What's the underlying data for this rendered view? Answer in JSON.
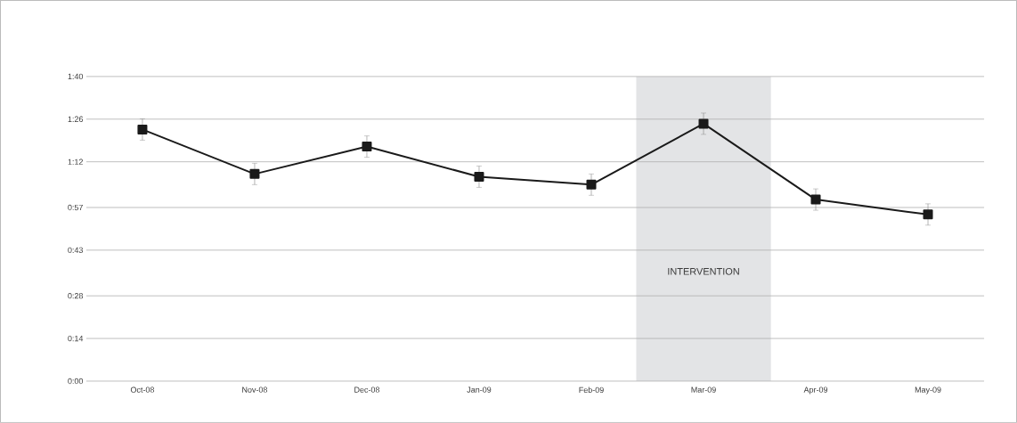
{
  "chart_data": {
    "type": "line",
    "categories": [
      "Oct-08",
      "Nov-08",
      "Dec-08",
      "Jan-09",
      "Feb-09",
      "Mar-09",
      "Apr-09",
      "May-09"
    ],
    "series": [
      {
        "color": "#1a1a1a",
        "values": [
          82.6,
          68.0,
          77.0,
          67.1,
          64.5,
          84.5,
          59.6,
          54.7
        ],
        "errors": [
          3.5,
          3.5,
          3.5,
          3.5,
          3.5,
          3.5,
          3.5,
          3.5
        ]
      }
    ],
    "ylim": [
      0,
      100
    ],
    "yticks": [
      {
        "value": 0,
        "label": "0:00"
      },
      {
        "value": 14,
        "label": "0:14"
      },
      {
        "value": 28,
        "label": "0:28"
      },
      {
        "value": 43,
        "label": "0:43"
      },
      {
        "value": 57,
        "label": "0:57"
      },
      {
        "value": 72,
        "label": "1:12"
      },
      {
        "value": 86,
        "label": "1:26"
      },
      {
        "value": 100,
        "label": "1:40"
      }
    ],
    "annotations": [
      "INTERVENTION"
    ],
    "grid": "y",
    "marker": "square",
    "line_style": "solid"
  }
}
